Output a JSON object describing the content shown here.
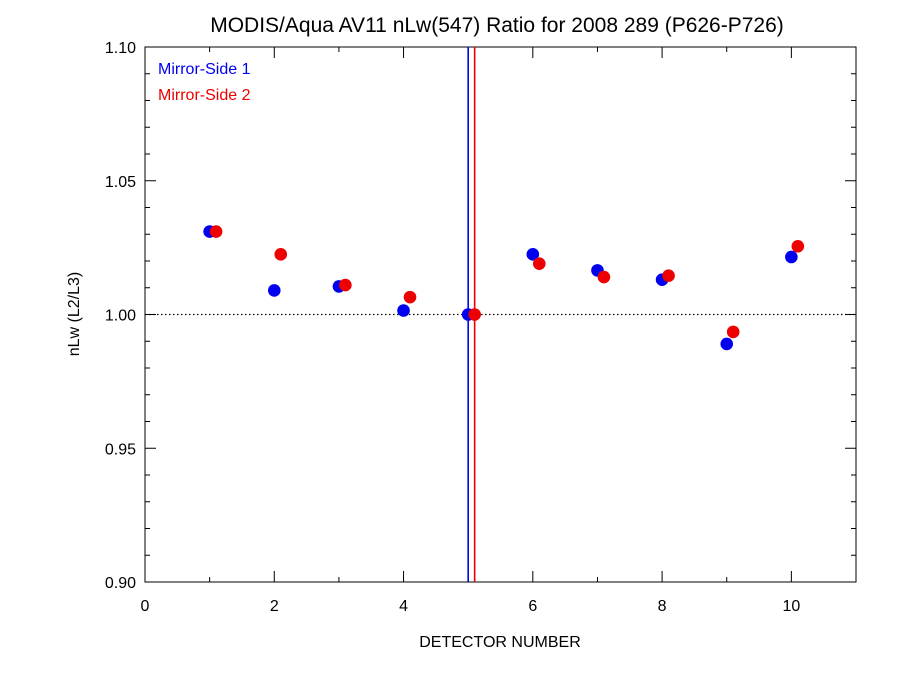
{
  "chart_data": {
    "type": "scatter",
    "title": "MODIS/Aqua AV11 nLw(547) Ratio for 2008 289 (P626-P726)",
    "xlabel": "DETECTOR NUMBER",
    "ylabel": "nLw (L2/L3)",
    "xlim": [
      0,
      11
    ],
    "ylim": [
      0.9,
      1.1
    ],
    "xticks": [
      0,
      2,
      4,
      6,
      8,
      10
    ],
    "xtick_labels": [
      "0",
      "2",
      "4",
      "6",
      "8",
      "10"
    ],
    "yticks": [
      0.9,
      0.95,
      1.0,
      1.05,
      1.1
    ],
    "ytick_labels": [
      "0.90",
      "0.95",
      "1.00",
      "1.05",
      "1.10"
    ],
    "reference_line_y": 1.0,
    "vertical_lines": [
      {
        "x": 5.0,
        "color": "#0000ee"
      },
      {
        "x": 5.1,
        "color": "#ee0000"
      }
    ],
    "legend_position": "top-left",
    "series": [
      {
        "name": "Mirror-Side 1",
        "color": "#0000ee",
        "x": [
          1,
          2,
          3,
          4,
          5,
          6,
          7,
          8,
          9,
          10
        ],
        "y": [
          1.031,
          1.009,
          1.0105,
          1.0015,
          1.0,
          1.0225,
          1.0165,
          1.013,
          0.989,
          1.0215
        ]
      },
      {
        "name": "Mirror-Side 2",
        "color": "#ee0000",
        "x": [
          1.1,
          2.1,
          3.1,
          4.1,
          5.1,
          6.1,
          7.1,
          8.1,
          9.1,
          10.1
        ],
        "y": [
          1.031,
          1.0225,
          1.011,
          1.0065,
          1.0,
          1.019,
          1.014,
          1.0145,
          0.9935,
          1.0255
        ]
      }
    ]
  }
}
